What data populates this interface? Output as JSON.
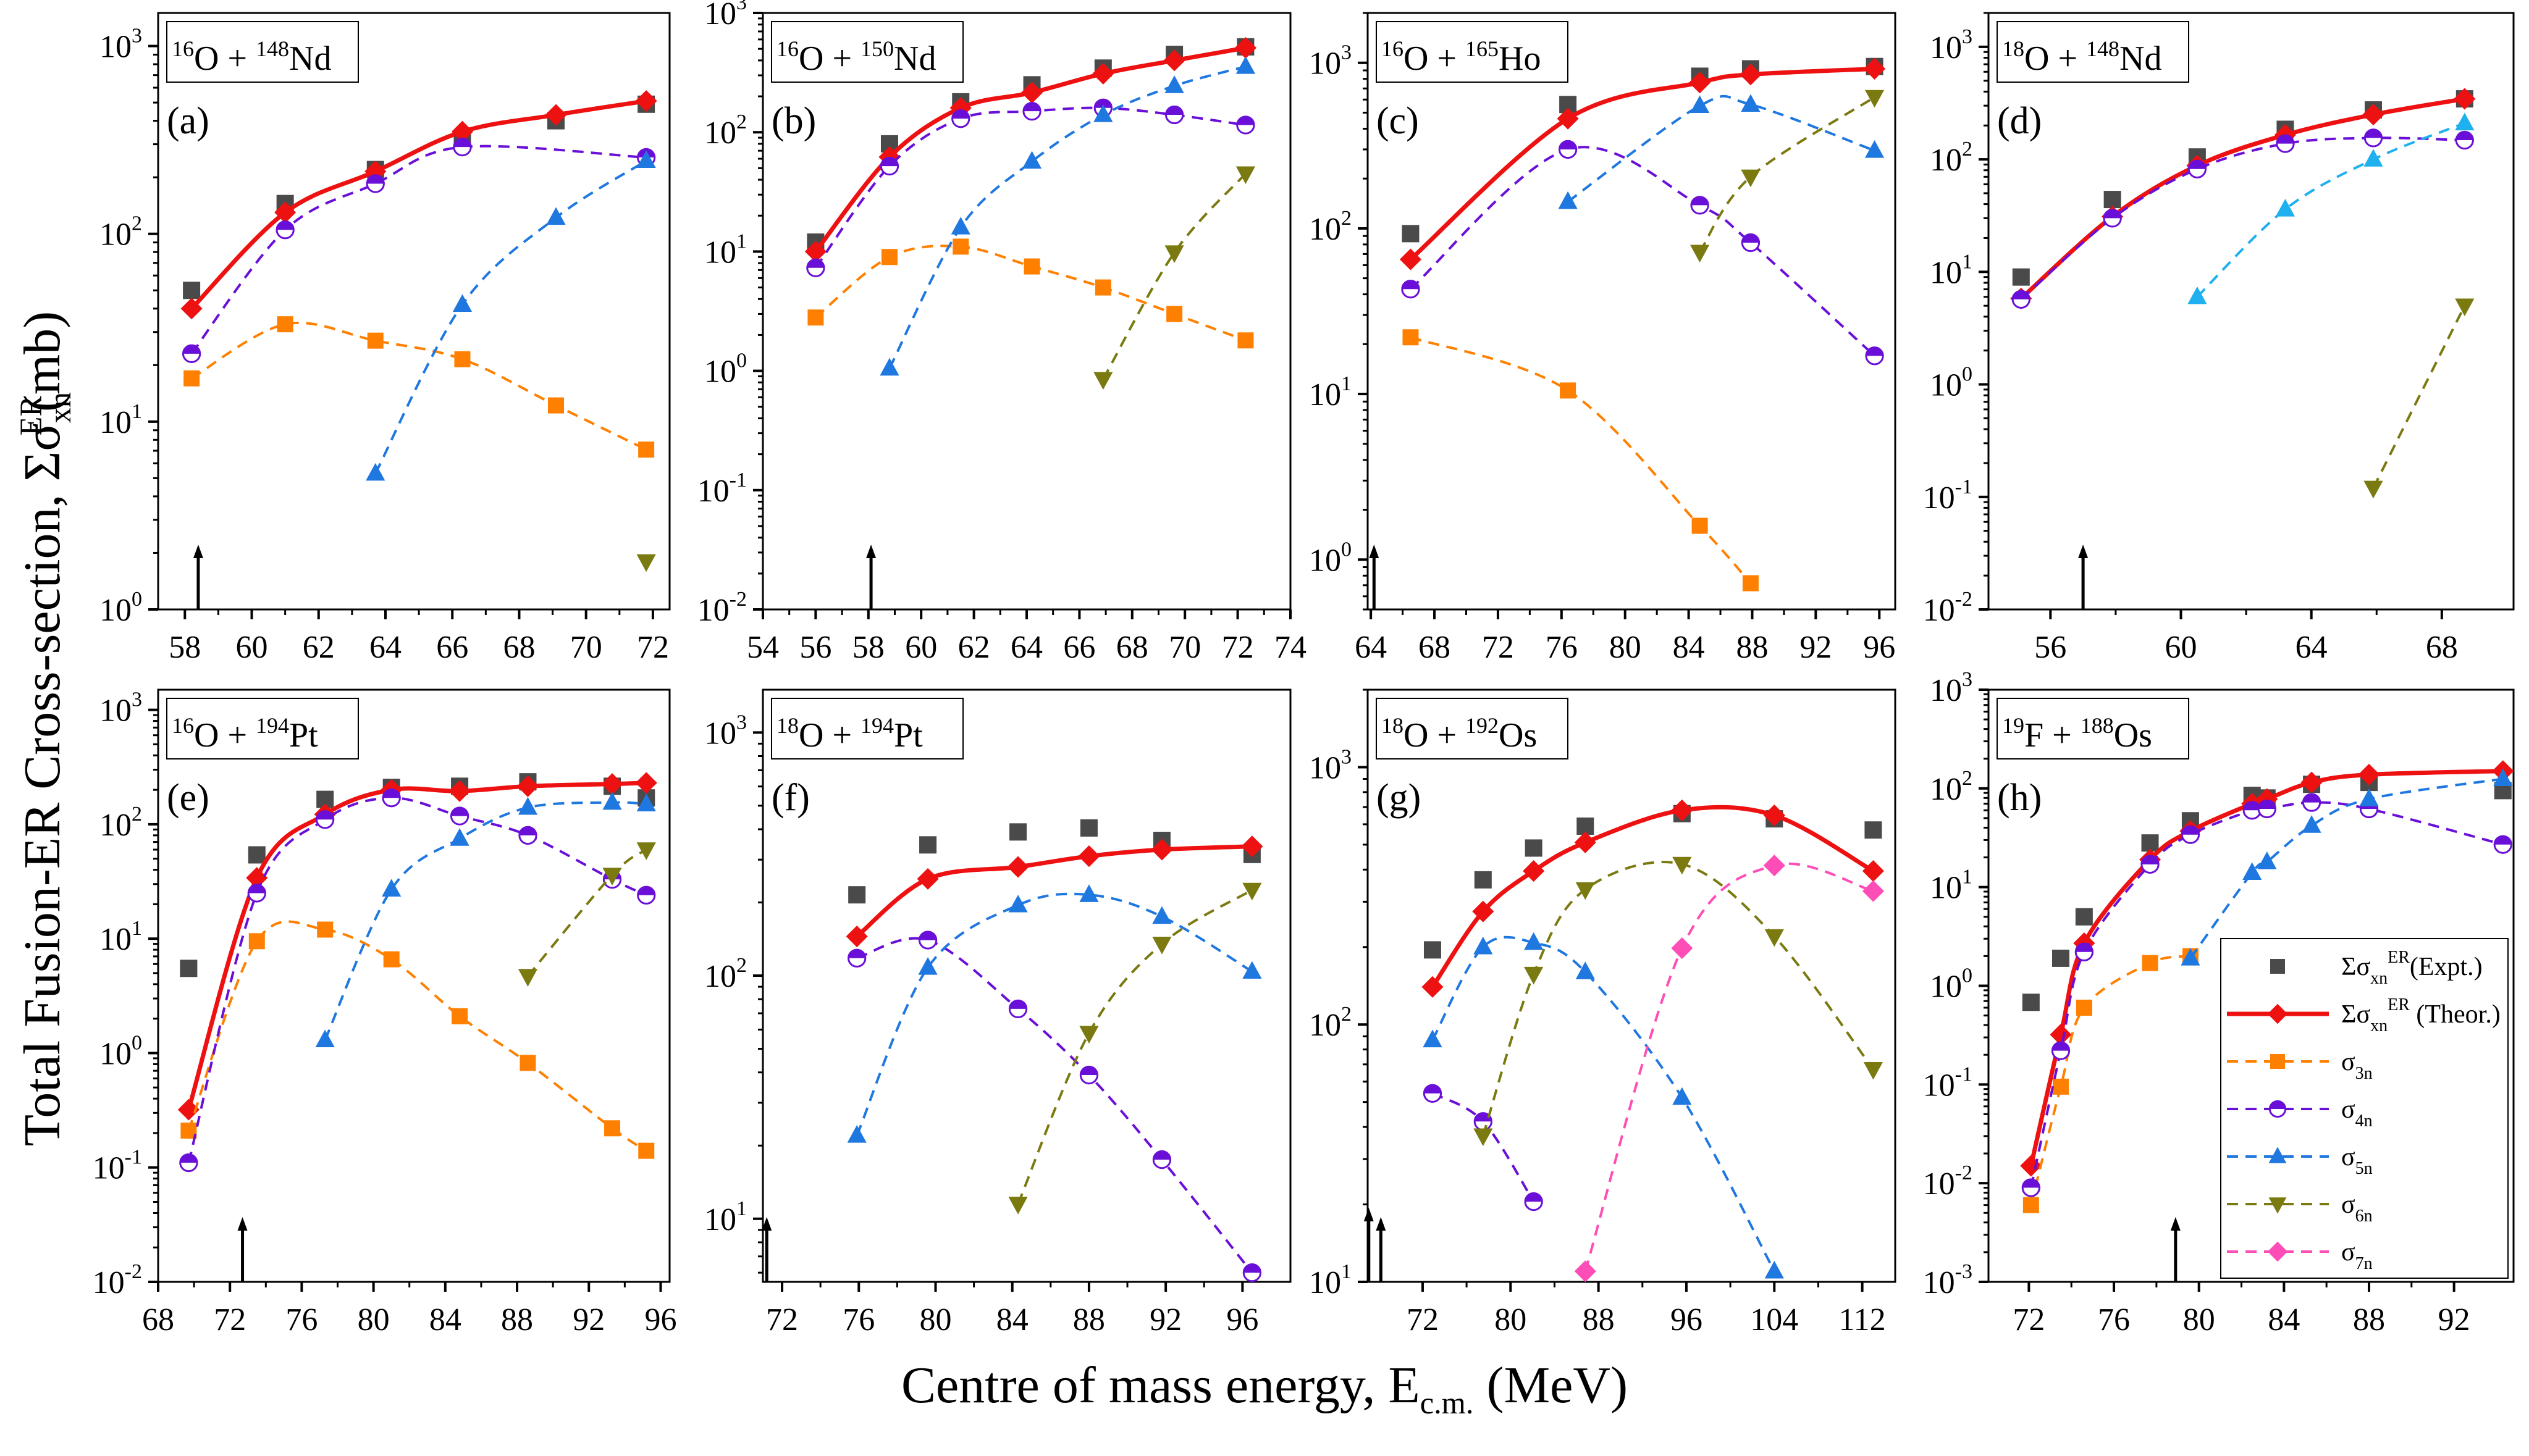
{
  "figure": {
    "ylabel_main": "Total Fusion-ER Cross-section, ",
    "ylabel_sym": "Σσ",
    "ylabel_sub": "xn",
    "ylabel_sup": "ER",
    "ylabel_unit": " (mb)",
    "xlabel_main": "Centre of mass energy, E",
    "xlabel_sub": "c.m.",
    "xlabel_unit": " (MeV)"
  },
  "colors": {
    "expt": "#4a4a4a",
    "theor": "#ee1111",
    "s3n": "#ff8000",
    "s4n": "#6a0fd8",
    "s5n": "#1f77e0",
    "s5n_d": "#1fb0f0",
    "s6n": "#7a7a10",
    "s7n": "#ff4db8"
  },
  "legend": [
    {
      "key": "expt",
      "label_sym": "Σσ",
      "label_sub": "xn",
      "label_sup": "ER",
      "label_rest": "(Expt.)",
      "marker": "square",
      "line": false
    },
    {
      "key": "theor",
      "label_sym": "Σσ",
      "label_sub": "xn",
      "label_sup": "ER",
      "label_rest": " (Theor.)",
      "marker": "diamond",
      "line": "solid"
    },
    {
      "key": "s3n",
      "label_sym": "σ",
      "label_sub": "3n",
      "label_sup": "",
      "label_rest": "",
      "marker": "square",
      "line": "dash"
    },
    {
      "key": "s4n",
      "label_sym": "σ",
      "label_sub": "4n",
      "label_sup": "",
      "label_rest": "",
      "marker": "halfcircle",
      "line": "dash"
    },
    {
      "key": "s5n",
      "label_sym": "σ",
      "label_sub": "5n",
      "label_sup": "",
      "label_rest": "",
      "marker": "triangle-up",
      "line": "dash"
    },
    {
      "key": "s6n",
      "label_sym": "σ",
      "label_sub": "6n",
      "label_sup": "",
      "label_rest": "",
      "marker": "triangle-down",
      "line": "dash"
    },
    {
      "key": "s7n",
      "label_sym": "σ",
      "label_sub": "7n",
      "label_sup": "",
      "label_rest": "",
      "marker": "diamond",
      "line": "dash"
    }
  ],
  "chart_data": [
    {
      "type": "line",
      "panel": "(a)",
      "title_proj_mass": "16",
      "title_proj": "O",
      "title_targ_mass": "148",
      "title_targ": "Nd",
      "xlim": [
        57.2,
        72.5
      ],
      "xticks": [
        58,
        60,
        62,
        64,
        66,
        68,
        70,
        72
      ],
      "ylim": [
        1,
        1500
      ],
      "yticks_exp": [
        0,
        1,
        2,
        3
      ],
      "yscale": "log",
      "arrow_x": 58.4,
      "series": [
        {
          "key": "expt",
          "x": [
            58.2,
            61.0,
            63.7,
            66.3,
            69.1,
            71.8
          ],
          "y": [
            50,
            145,
            220,
            320,
            400,
            490
          ]
        },
        {
          "key": "theor",
          "x": [
            58.2,
            61.0,
            63.7,
            66.3,
            69.1,
            71.8
          ],
          "y": [
            40,
            130,
            215,
            350,
            430,
            510
          ]
        },
        {
          "key": "s3n",
          "x": [
            58.2,
            61.0,
            63.7,
            66.3,
            69.1,
            71.8
          ],
          "y": [
            17,
            33,
            27,
            21.5,
            12.2,
            7.1
          ]
        },
        {
          "key": "s4n",
          "x": [
            58.2,
            61.0,
            63.7,
            66.3,
            69.1,
            71.8
          ],
          "y": [
            23,
            105,
            185,
            290,
            null,
            255
          ]
        },
        {
          "key": "s5n",
          "x": [
            63.7,
            66.3,
            69.1,
            71.8
          ],
          "y": [
            5.3,
            42,
            122,
            245
          ]
        },
        {
          "key": "s6n",
          "x": [
            71.8
          ],
          "y": [
            1.8
          ]
        }
      ]
    },
    {
      "type": "line",
      "panel": "(b)",
      "title_proj_mass": "16",
      "title_proj": "O",
      "title_targ_mass": "150",
      "title_targ": "Nd",
      "xlim": [
        54,
        74
      ],
      "xticks": [
        54,
        56,
        58,
        60,
        62,
        64,
        66,
        68,
        70,
        72,
        74
      ],
      "ylim": [
        0.01,
        1000
      ],
      "yticks_exp": [
        -2,
        -1,
        0,
        1,
        2,
        3
      ],
      "yscale": "log",
      "arrow_x": 58.1,
      "series": [
        {
          "key": "expt",
          "x": [
            56.0,
            58.8,
            61.5,
            64.2,
            66.9,
            69.6,
            72.3
          ],
          "y": [
            12,
            80,
            180,
            250,
            345,
            450,
            520
          ]
        },
        {
          "key": "theor",
          "x": [
            56.0,
            58.8,
            61.5,
            64.2,
            66.9,
            69.6,
            72.3
          ],
          "y": [
            10,
            62,
            160,
            215,
            310,
            400,
            510
          ]
        },
        {
          "key": "s3n",
          "x": [
            56.0,
            58.8,
            61.5,
            64.2,
            66.9,
            69.6,
            72.3
          ],
          "y": [
            2.8,
            9.0,
            11,
            7.5,
            5.0,
            3.0,
            1.8
          ]
        },
        {
          "key": "s4n",
          "x": [
            56.0,
            58.8,
            61.5,
            64.2,
            66.9,
            69.6,
            72.3
          ],
          "y": [
            7.3,
            52,
            130,
            150,
            160,
            140,
            115
          ]
        },
        {
          "key": "s5n",
          "x": [
            58.8,
            61.5,
            64.2,
            66.9,
            69.6,
            72.3
          ],
          "y": [
            1.05,
            16,
            57,
            140,
            245,
            355
          ]
        },
        {
          "key": "s6n",
          "x": [
            66.9,
            69.6,
            72.3
          ],
          "y": [
            0.85,
            9.8,
            45
          ]
        }
      ]
    },
    {
      "type": "line",
      "panel": "(c)",
      "title_proj_mass": "16",
      "title_proj": "O",
      "title_targ_mass": "165",
      "title_targ": "Ho",
      "xlim": [
        63.8,
        97
      ],
      "xticks": [
        64,
        68,
        72,
        76,
        80,
        84,
        88,
        92,
        96
      ],
      "ylim": [
        0.5,
        2000
      ],
      "yticks_exp": [
        0,
        1,
        2,
        3
      ],
      "yscale": "log",
      "arrow_x": 64.2,
      "series": [
        {
          "key": "expt",
          "x": [
            66.5,
            76.4,
            84.7,
            87.9,
            95.7
          ],
          "y": [
            93,
            560,
            830,
            920,
            950
          ]
        },
        {
          "key": "theor",
          "x": [
            66.5,
            76.4,
            84.7,
            87.9,
            95.7
          ],
          "y": [
            65,
            460,
            760,
            850,
            920
          ]
        },
        {
          "key": "s3n",
          "x": [
            66.5,
            76.4,
            84.7,
            87.9
          ],
          "y": [
            22,
            10.5,
            1.6,
            0.72
          ]
        },
        {
          "key": "s4n",
          "x": [
            66.5,
            76.4,
            84.7,
            87.9,
            95.7
          ],
          "y": [
            43,
            300,
            138,
            82,
            17
          ]
        },
        {
          "key": "s5n",
          "x": [
            76.4,
            84.7,
            87.9,
            95.7
          ],
          "y": [
            145,
            550,
            560,
            295
          ]
        },
        {
          "key": "s6n",
          "x": [
            84.7,
            87.9,
            95.7
          ],
          "y": [
            72,
            205,
            620
          ]
        }
      ]
    },
    {
      "type": "line",
      "panel": "(d)",
      "title_proj_mass": "18",
      "title_proj": "O",
      "title_targ_mass": "148",
      "title_targ": "Nd",
      "xlim": [
        54.1,
        70.2
      ],
      "xticks": [
        56,
        60,
        64,
        68
      ],
      "ylim": [
        0.01,
        2000
      ],
      "yticks_exp": [
        -2,
        -1,
        0,
        1,
        2,
        3
      ],
      "yscale": "log",
      "arrow_x": 57.0,
      "series": [
        {
          "key": "expt",
          "x": [
            55.1,
            57.9,
            60.5,
            63.2,
            65.9,
            68.7
          ],
          "y": [
            9,
            44,
            105,
            185,
            275,
            345
          ]
        },
        {
          "key": "theor",
          "x": [
            55.1,
            57.9,
            60.5,
            63.2,
            65.9,
            68.7
          ],
          "y": [
            5.8,
            31,
            88,
            165,
            250,
            345
          ]
        },
        {
          "key": "s4n",
          "x": [
            55.1,
            57.9,
            60.5,
            63.2,
            65.9,
            68.7
          ],
          "y": [
            5.7,
            30,
            82,
            138,
            155,
            148
          ]
        },
        {
          "key": "s5n_d",
          "x": [
            60.5,
            63.2,
            65.9,
            68.7
          ],
          "y": [
            6,
            36,
            100,
            210
          ]
        },
        {
          "key": "s6n",
          "x": [
            65.9,
            68.7
          ],
          "y": [
            0.12,
            5.0
          ]
        }
      ]
    },
    {
      "type": "line",
      "panel": "(e)",
      "title_proj_mass": "16",
      "title_proj": "O",
      "title_targ_mass": "194",
      "title_targ": "Pt",
      "xlim": [
        68,
        96.5
      ],
      "xticks": [
        68,
        72,
        76,
        80,
        84,
        88,
        92,
        96
      ],
      "ylim": [
        0.01,
        1500
      ],
      "yticks_exp": [
        -2,
        -1,
        0,
        1,
        2,
        3
      ],
      "yscale": "log",
      "arrow_x": 72.7,
      "series": [
        {
          "key": "expt",
          "x": [
            69.7,
            73.5,
            77.3,
            81.0,
            84.8,
            88.6,
            93.3,
            95.2
          ],
          "y": [
            5.5,
            54,
            165,
            210,
            215,
            235,
            215,
            170
          ]
        },
        {
          "key": "theor",
          "x": [
            69.7,
            73.5,
            77.3,
            81.0,
            84.8,
            88.6,
            93.3,
            95.2
          ],
          "y": [
            0.32,
            34,
            122,
            200,
            195,
            215,
            225,
            230
          ]
        },
        {
          "key": "s3n",
          "x": [
            69.7,
            73.5,
            77.3,
            81.0,
            84.8,
            88.6,
            93.3,
            95.2
          ],
          "y": [
            0.21,
            9.5,
            12,
            6.6,
            2.1,
            0.82,
            0.22,
            0.14
          ]
        },
        {
          "key": "s4n",
          "x": [
            69.7,
            73.5,
            77.3,
            81.0,
            84.8,
            88.6,
            93.3,
            95.2
          ],
          "y": [
            0.11,
            25,
            110,
            170,
            118,
            80,
            33,
            24
          ]
        },
        {
          "key": "s5n",
          "x": [
            77.3,
            81.0,
            84.8,
            88.6,
            93.3,
            95.2
          ],
          "y": [
            1.3,
            27,
            75,
            140,
            155,
            150
          ]
        },
        {
          "key": "s6n",
          "x": [
            88.6,
            93.3,
            95.2
          ],
          "y": [
            4.7,
            36,
            60
          ]
        }
      ]
    },
    {
      "type": "line",
      "panel": "(f)",
      "title_proj_mass": "18",
      "title_proj": "O",
      "title_targ_mass": "194",
      "title_targ": "Pt",
      "xlim": [
        71,
        98.5
      ],
      "xticks": [
        72,
        76,
        80,
        84,
        88,
        92,
        96
      ],
      "ylim": [
        5.5,
        1500
      ],
      "yticks_exp": [
        1,
        2,
        3
      ],
      "yscale": "log",
      "arrow_x": 71.2,
      "series": [
        {
          "key": "expt",
          "x": [
            75.9,
            79.6,
            84.3,
            88.0,
            91.8,
            96.5
          ],
          "y": [
            215,
            345,
            390,
            405,
            360,
            315
          ]
        },
        {
          "key": "theor",
          "x": [
            75.9,
            79.6,
            84.3,
            88.0,
            91.8,
            96.5
          ],
          "y": [
            145,
            250,
            280,
            310,
            330,
            340
          ]
        },
        {
          "key": "s4n",
          "x": [
            75.9,
            79.6,
            84.3,
            88.0,
            91.8,
            96.5
          ],
          "y": [
            118,
            140,
            73,
            39,
            17.5,
            6.0
          ]
        },
        {
          "key": "s5n",
          "x": [
            75.9,
            79.6,
            84.3,
            88.0,
            91.8,
            96.5
          ],
          "y": [
            22,
            108,
            195,
            215,
            175,
            104
          ]
        },
        {
          "key": "s6n",
          "x": [
            84.3,
            88.0,
            91.8,
            96.5
          ],
          "y": [
            11.5,
            58,
            135,
            225
          ]
        }
      ]
    },
    {
      "type": "line",
      "panel": "(g)",
      "title_proj_mass": "18",
      "title_proj": "O",
      "title_targ_mass": "192",
      "title_targ": "Os",
      "xlim": [
        67,
        115
      ],
      "xticks": [
        72,
        80,
        88,
        96,
        104,
        112
      ],
      "ylim": [
        10,
        2000
      ],
      "yticks_exp": [
        1,
        2,
        3
      ],
      "yscale": "log",
      "arrow_x": [
        67.1,
        68.2
      ],
      "series": [
        {
          "key": "expt",
          "x": [
            72.9,
            77.5,
            82.1,
            86.8,
            95.6,
            104.0,
            113.0
          ],
          "y": [
            195,
            365,
            485,
            590,
            660,
            630,
            570
          ]
        },
        {
          "key": "theor",
          "x": [
            72.9,
            77.5,
            82.1,
            86.8,
            95.6,
            104.0,
            113.0
          ],
          "y": [
            140,
            275,
            395,
            510,
            680,
            650,
            395
          ]
        },
        {
          "key": "s4n",
          "x": [
            72.9,
            77.5,
            82.1
          ],
          "y": [
            54,
            42,
            20.5
          ]
        },
        {
          "key": "s5n",
          "x": [
            72.9,
            77.5,
            82.1,
            86.8,
            95.6,
            104.0
          ],
          "y": [
            87,
            200,
            208,
            160,
            52,
            11
          ]
        },
        {
          "key": "s6n",
          "x": [
            77.5,
            82.1,
            86.8,
            95.6,
            104.0,
            113.0
          ],
          "y": [
            37,
            157,
            335,
            420,
            220,
            67
          ]
        },
        {
          "key": "s7n",
          "x": [
            86.8,
            95.6,
            104.0,
            113.0
          ],
          "y": [
            11,
            198,
            415,
            330
          ]
        }
      ]
    },
    {
      "type": "line",
      "panel": "(h)",
      "title_proj_mass": "19",
      "title_proj": "F",
      "title_targ_mass": "188",
      "title_targ": "Os",
      "xlim": [
        70.1,
        94.8
      ],
      "xticks": [
        72,
        76,
        80,
        84,
        88,
        92
      ],
      "ylim": [
        0.001,
        1000
      ],
      "yticks_exp": [
        -3,
        -2,
        -1,
        0,
        1,
        2,
        3
      ],
      "yscale": "log",
      "arrow_x": 78.9,
      "legend_position": "lower-right",
      "series": [
        {
          "key": "expt",
          "x": [
            72.1,
            73.5,
            74.6,
            77.7,
            79.6,
            82.5,
            83.2,
            85.3,
            88.0,
            94.3
          ],
          "y": [
            0.68,
            1.9,
            5.0,
            28,
            47,
            85,
            80,
            110,
            115,
            95
          ]
        },
        {
          "key": "theor",
          "x": [
            72.1,
            73.5,
            74.6,
            77.7,
            79.6,
            82.5,
            83.2,
            85.3,
            88.0,
            94.3
          ],
          "y": [
            0.015,
            0.32,
            2.7,
            19,
            37,
            70,
            78,
            115,
            138,
            150
          ]
        },
        {
          "key": "s3n",
          "x": [
            72.1,
            73.5,
            74.6,
            77.7,
            79.6
          ],
          "y": [
            0.006,
            0.095,
            0.6,
            1.7,
            2.0
          ]
        },
        {
          "key": "s4n",
          "x": [
            72.1,
            73.5,
            74.6,
            77.7,
            79.6,
            82.5,
            83.2,
            85.3,
            88.0,
            94.3
          ],
          "y": [
            0.009,
            0.22,
            2.2,
            17,
            34,
            60,
            62,
            72,
            62,
            27
          ]
        },
        {
          "key": "s5n",
          "x": [
            79.6,
            82.5,
            83.2,
            85.3,
            88.0,
            94.3
          ],
          "y": [
            1.9,
            14,
            18,
            42,
            78,
            125
          ]
        }
      ]
    }
  ]
}
